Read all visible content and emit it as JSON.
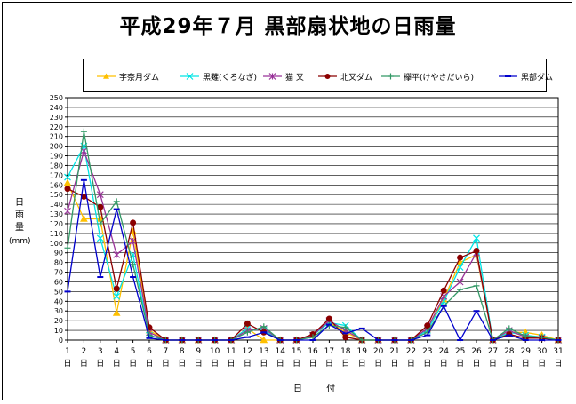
{
  "title": "平成29年７月 黒部扇状地の日雨量",
  "chart_data": {
    "type": "line",
    "title": "平成29年７月 黒部扇状地の日雨量",
    "xlabel": "日 付",
    "ylabel": "日雨量",
    "yunit": "(mm)",
    "ylim": [
      0,
      250
    ],
    "ystep": 10,
    "x": [
      1,
      2,
      3,
      4,
      5,
      6,
      7,
      8,
      9,
      10,
      11,
      12,
      13,
      14,
      15,
      16,
      17,
      18,
      19,
      20,
      21,
      22,
      23,
      24,
      25,
      26,
      27,
      28,
      29,
      30,
      31
    ],
    "x_suffix": "日",
    "grid": true,
    "legend_position": "top",
    "series": [
      {
        "name": "宇奈月ダム",
        "color": "#FFC000",
        "marker": "triangle",
        "values": [
          162,
          125,
          125,
          28,
          112,
          10,
          0,
          0,
          0,
          0,
          0,
          12,
          0,
          0,
          0,
          5,
          18,
          8,
          0,
          0,
          0,
          0,
          12,
          42,
          80,
          88,
          0,
          8,
          8,
          5,
          0
        ]
      },
      {
        "name": "黒薙(くろなぎ)",
        "color": "#00E5E5",
        "marker": "x",
        "values": [
          168,
          200,
          105,
          45,
          88,
          5,
          0,
          0,
          0,
          0,
          0,
          12,
          10,
          0,
          0,
          5,
          18,
          15,
          0,
          0,
          0,
          0,
          10,
          40,
          75,
          105,
          0,
          8,
          5,
          3,
          0
        ]
      },
      {
        "name": "猫 又",
        "color": "#993399",
        "marker": "star",
        "values": [
          133,
          195,
          150,
          88,
          102,
          8,
          0,
          0,
          0,
          0,
          0,
          10,
          12,
          0,
          0,
          5,
          20,
          10,
          0,
          0,
          0,
          0,
          12,
          45,
          60,
          90,
          0,
          10,
          3,
          2,
          0
        ]
      },
      {
        "name": "北又ダム",
        "color": "#8B0000",
        "marker": "circle",
        "values": [
          156,
          148,
          137,
          53,
          121,
          13,
          0,
          0,
          0,
          0,
          0,
          17,
          8,
          0,
          0,
          6,
          22,
          3,
          0,
          0,
          0,
          0,
          15,
          51,
          85,
          92,
          0,
          6,
          2,
          2,
          0
        ]
      },
      {
        "name": "欅平(けやきだいら)",
        "color": "#339966",
        "marker": "plus",
        "values": [
          95,
          215,
          120,
          143,
          78,
          5,
          0,
          0,
          0,
          0,
          0,
          8,
          14,
          0,
          0,
          3,
          15,
          13,
          0,
          0,
          0,
          0,
          8,
          35,
          52,
          56,
          0,
          12,
          4,
          3,
          0
        ]
      },
      {
        "name": "黒部ダム",
        "color": "#0000CC",
        "marker": "dash",
        "values": [
          50,
          165,
          65,
          135,
          65,
          2,
          0,
          0,
          0,
          0,
          0,
          3,
          8,
          0,
          0,
          0,
          16,
          7,
          12,
          0,
          0,
          0,
          5,
          35,
          0,
          30,
          0,
          5,
          0,
          0,
          0
        ]
      }
    ]
  }
}
